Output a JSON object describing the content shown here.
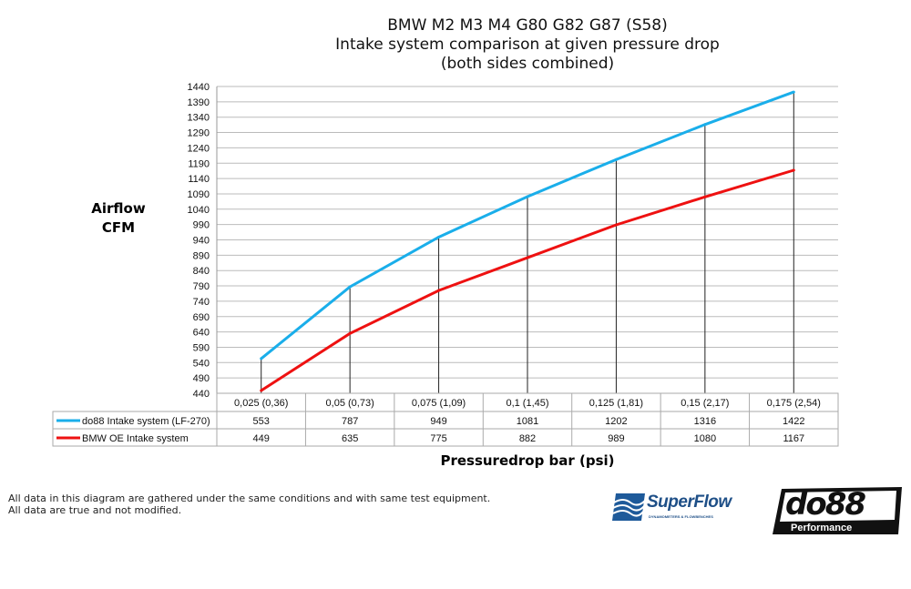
{
  "chart_data": {
    "type": "line",
    "title": [
      "BMW M2 M3 M4 G80 G82 G87 (S58)",
      "Intake system comparison at given pressure drop",
      "(both sides combined)"
    ],
    "ylabel": [
      "Airflow",
      "CFM"
    ],
    "xlabel": "Pressuredrop bar (psi)",
    "ylim": [
      440,
      1440
    ],
    "yticks": [
      440,
      490,
      540,
      590,
      640,
      690,
      740,
      790,
      840,
      890,
      940,
      990,
      1040,
      1090,
      1140,
      1190,
      1240,
      1290,
      1340,
      1390,
      1440
    ],
    "grid": true,
    "legend": "data-table",
    "categories": [
      "0,025 (0,36)",
      "0,05 (0,73)",
      "0,075 (1,09)",
      "0,1 (1,45)",
      "0,125 (1,81)",
      "0,15 (2,17)",
      "0,175 (2,54)"
    ],
    "series": [
      {
        "name": "do88 Intake system (LF-270)",
        "color": "#1aaeea",
        "values": [
          553,
          787,
          949,
          1081,
          1202,
          1316,
          1422
        ]
      },
      {
        "name": "BMW OE Intake system",
        "color": "#ee1111",
        "values": [
          449,
          635,
          775,
          882,
          989,
          1080,
          1167
        ]
      }
    ]
  },
  "notes": [
    "All data in this diagram are gathered under the same conditions and with same test equipment.",
    "All data are true and not modified."
  ],
  "logos": {
    "superflow": "SuperFlow",
    "superflow_sub": "DYNAMOMETERS & FLOWBENCHES",
    "do88": "do88",
    "do88_sub": "Performance"
  }
}
